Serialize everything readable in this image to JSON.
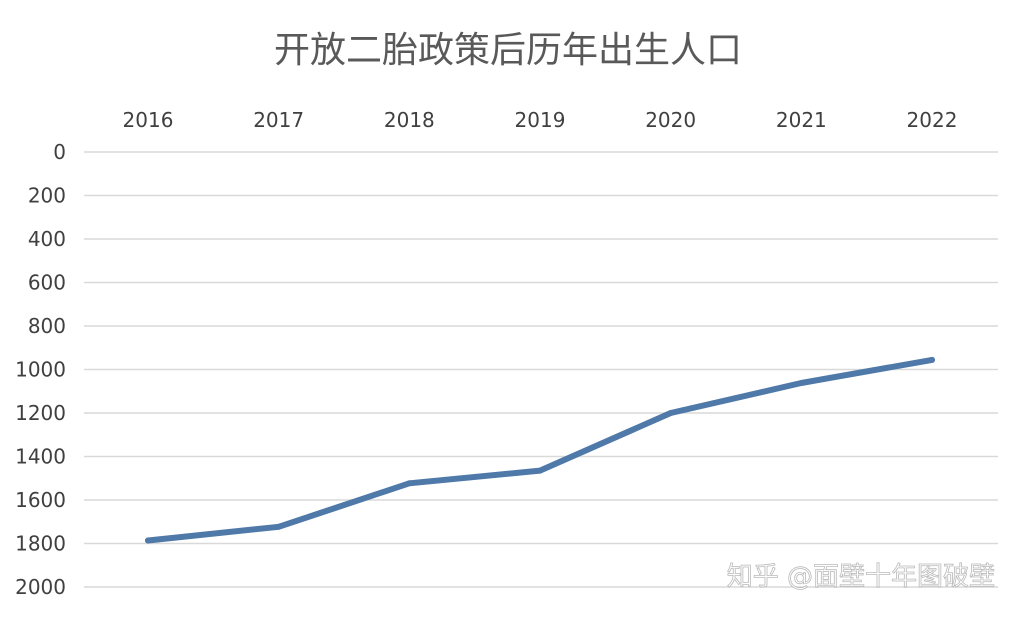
{
  "chart_data": {
    "type": "line",
    "title": "开放二胎政策后历年出生人口",
    "xlabel": "",
    "ylabel": "",
    "categories": [
      "2016",
      "2017",
      "2018",
      "2019",
      "2020",
      "2021",
      "2022"
    ],
    "series": [
      {
        "values": [
          1786,
          1723,
          1523,
          1465,
          1200,
          1062,
          956
        ],
        "color": "#4f79a8"
      }
    ],
    "y_ticks": [
      "0",
      "200",
      "400",
      "600",
      "800",
      "1000",
      "1200",
      "1400",
      "1600",
      "1800",
      "2000"
    ],
    "ylim": [
      0,
      2000
    ],
    "y_axis_reversed": true,
    "x_axis_position": "top",
    "grid": true,
    "legend": "none"
  },
  "watermark": {
    "text": "知乎 @面壁十年图破壁"
  }
}
